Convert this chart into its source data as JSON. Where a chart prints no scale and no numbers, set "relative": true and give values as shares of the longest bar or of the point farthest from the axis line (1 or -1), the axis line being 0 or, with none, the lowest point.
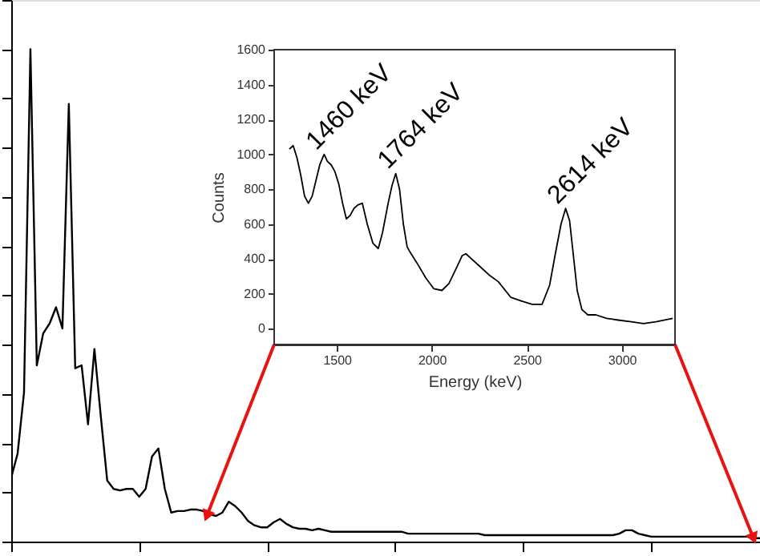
{
  "chart_data": [
    {
      "type": "line",
      "relative": true,
      "tick_labels": false,
      "grid": false,
      "line_style": "solid",
      "marker": "none",
      "categories": [
        null,
        null,
        null,
        null,
        null,
        null,
        null,
        null,
        null,
        null,
        null,
        null,
        null,
        null,
        null,
        null,
        null,
        null,
        null,
        null,
        null,
        null,
        null,
        null,
        null,
        null,
        null,
        null,
        null,
        null,
        null,
        null,
        null,
        null,
        null,
        null,
        null,
        null,
        null,
        null,
        null,
        null,
        null,
        null,
        null,
        null,
        null,
        null,
        null,
        null,
        null,
        null,
        null,
        null,
        null,
        null,
        null,
        null,
        null,
        null,
        null,
        null,
        null,
        null,
        null,
        null,
        null,
        null,
        null,
        null,
        null,
        null,
        null,
        null,
        null,
        null,
        null,
        null,
        null,
        null,
        null,
        null,
        null,
        null,
        null,
        null,
        null,
        null,
        null,
        null,
        null,
        null,
        null,
        null,
        null,
        null,
        null,
        null,
        null,
        null,
        null,
        null,
        null,
        null,
        null,
        null,
        null,
        null,
        null,
        null,
        null,
        null,
        null,
        null,
        null,
        null,
        null,
        null
      ],
      "series": [
        {
          "color": "#000000",
          "values": [
            0.13,
            0.179,
            0.303,
            1.0,
            0.358,
            0.423,
            0.443,
            0.476,
            0.433,
            0.889,
            0.352,
            0.358,
            0.238,
            0.391,
            0.254,
            0.124,
            0.107,
            0.104,
            0.107,
            0.107,
            0.091,
            0.107,
            0.173,
            0.189,
            0.107,
            0.059,
            0.062,
            0.062,
            0.065,
            0.065,
            0.062,
            0.055,
            0.052,
            0.059,
            0.081,
            0.072,
            0.059,
            0.042,
            0.033,
            0.029,
            0.029,
            0.039,
            0.046,
            0.036,
            0.029,
            0.026,
            0.026,
            0.023,
            0.026,
            0.023,
            0.02,
            0.02,
            0.02,
            0.02,
            0.02,
            0.02,
            0.02,
            0.02,
            0.02,
            0.02,
            0.02,
            0.02,
            0.016,
            0.016,
            0.016,
            0.016,
            0.016,
            0.016,
            0.016,
            0.016,
            0.016,
            0.016,
            0.016,
            0.016,
            0.013,
            0.013,
            0.013,
            0.013,
            0.013,
            0.013,
            0.013,
            0.013,
            0.013,
            0.013,
            0.013,
            0.013,
            0.013,
            0.013,
            0.013,
            0.013,
            0.013,
            0.013,
            0.013,
            0.013,
            0.013,
            0.016,
            0.023,
            0.023,
            0.016,
            0.013,
            0.01,
            0.01,
            0.01,
            0.01,
            0.01,
            0.01,
            0.01,
            0.01,
            0.01,
            0.01,
            0.01,
            0.01,
            0.01,
            0.01,
            0.01,
            0.01,
            0.007,
            0.007
          ]
        }
      ]
    },
    {
      "type": "line",
      "xlabel": "Energy (keV)",
      "ylabel": "Counts",
      "grid": false,
      "line_style": "solid",
      "marker": "none",
      "xlim": [
        1170,
        3280
      ],
      "ylim": [
        -90,
        1600
      ],
      "xticks": [
        1500,
        2000,
        2500,
        3000
      ],
      "yticks": [
        0,
        200,
        400,
        600,
        800,
        1000,
        1200,
        1400,
        1600
      ],
      "annotations": [
        {
          "text": "1460 keV",
          "x": 1433,
          "y": 1000
        },
        {
          "text": "1764 keV",
          "x": 1810,
          "y": 890
        },
        {
          "text": "2614 keV",
          "x": 2704,
          "y": 690
        }
      ],
      "series": [
        {
          "color": "#000000",
          "x": [
            1250,
            1270,
            1290,
            1310,
            1330,
            1350,
            1370,
            1390,
            1410,
            1433,
            1450,
            1470,
            1490,
            1510,
            1530,
            1550,
            1570,
            1590,
            1610,
            1634,
            1660,
            1690,
            1718,
            1740,
            1770,
            1790,
            1810,
            1830,
            1850,
            1870,
            1885,
            1920,
            1969,
            2010,
            2053,
            2090,
            2130,
            2160,
            2179,
            2210,
            2250,
            2300,
            2350,
            2416,
            2470,
            2528,
            2580,
            2620,
            2650,
            2680,
            2704,
            2725,
            2745,
            2765,
            2790,
            2821,
            2863,
            2920,
            2980,
            3050,
            3114,
            3180,
            3268
          ],
          "values": [
            1030,
            1050,
            980,
            880,
            760,
            720,
            760,
            850,
            940,
            1000,
            960,
            940,
            900,
            830,
            720,
            630,
            650,
            690,
            710,
            720,
            600,
            490,
            460,
            550,
            720,
            820,
            890,
            800,
            600,
            470,
            440,
            380,
            290,
            230,
            220,
            260,
            350,
            420,
            430,
            400,
            360,
            310,
            270,
            180,
            160,
            140,
            140,
            250,
            430,
            600,
            690,
            620,
            420,
            220,
            110,
            80,
            80,
            60,
            50,
            40,
            30,
            40,
            60
          ]
        }
      ]
    }
  ]
}
